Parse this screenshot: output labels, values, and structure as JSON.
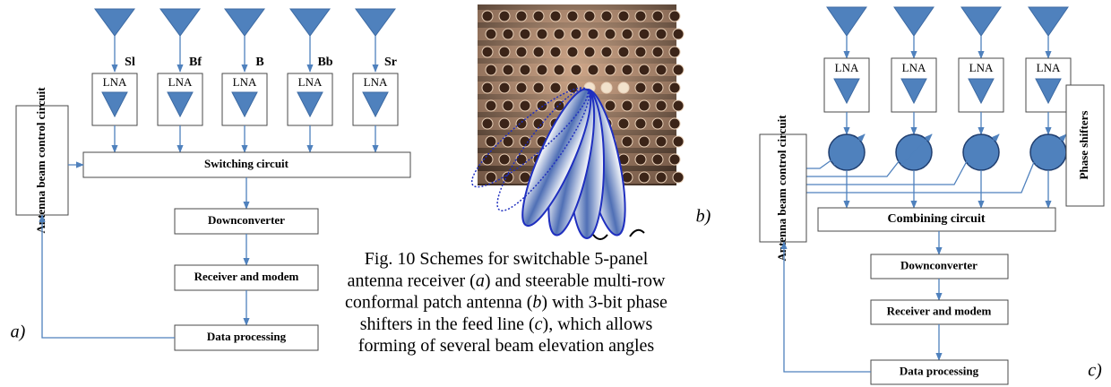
{
  "diagram_a": {
    "channels": [
      {
        "label": "Sl",
        "lna": "LNA"
      },
      {
        "label": "Bf",
        "lna": "LNA"
      },
      {
        "label": "B",
        "lna": "LNA"
      },
      {
        "label": "Bb",
        "lna": "LNA"
      },
      {
        "label": "Sr",
        "lna": "LNA"
      }
    ],
    "control": "Antenna beam control circuit",
    "switching": "Switching circuit",
    "stages": [
      "Downconverter",
      "Receiver and modem",
      "Data processing"
    ],
    "panel_label": "a)"
  },
  "photo_b": {
    "panel_label": "b)"
  },
  "caption": {
    "lines": [
      [
        "Fig. 10 Schemes for switchable 5-panel"
      ],
      [
        "antenna receiver (",
        "a",
        ") and steerable multi-row"
      ],
      [
        "conformal patch antenna (",
        "b",
        ") with 3-bit phase"
      ],
      [
        "shifters in the feed line (",
        "c",
        "), which allows"
      ],
      [
        "forming of several beam elevation angles"
      ]
    ]
  },
  "diagram_c": {
    "lna": [
      "LNA",
      "LNA",
      "LNA",
      "LNA"
    ],
    "control": "Antenna beam control circuit",
    "phase_shifters": "Phase shifters",
    "combining": "Combining circuit",
    "stages": [
      "Downconverter",
      "Receiver and modem",
      "Data processing"
    ],
    "panel_label": "c)"
  }
}
